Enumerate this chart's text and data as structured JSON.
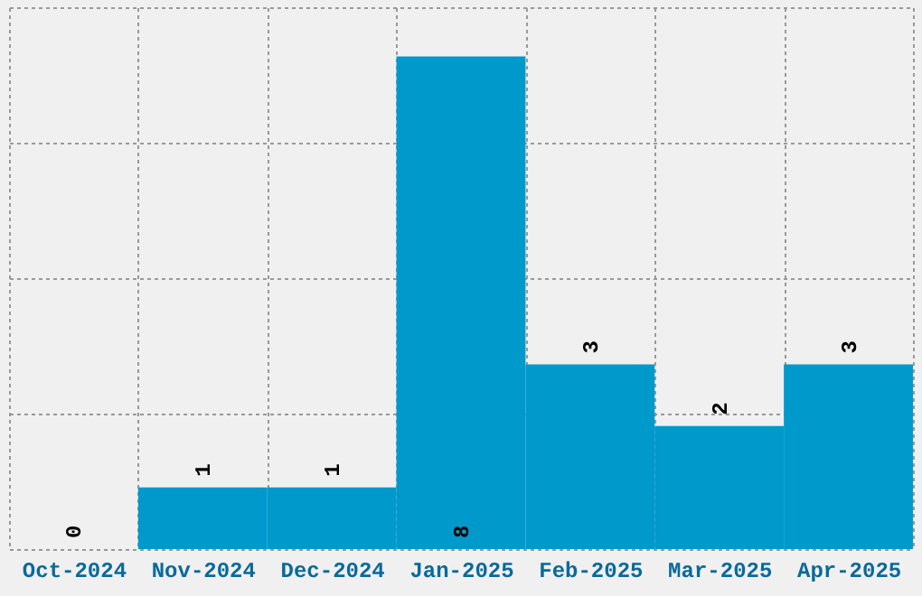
{
  "chart_data": {
    "type": "bar",
    "categories": [
      "Oct-2024",
      "Nov-2024",
      "Dec-2024",
      "Jan-2025",
      "Feb-2025",
      "Mar-2025",
      "Apr-2025"
    ],
    "values": [
      0,
      1,
      1,
      8,
      3,
      2,
      3
    ],
    "color": "#0099cc",
    "data_labels": true,
    "grid": true,
    "tick_labels": "x",
    "ylim": [
      0,
      8.8
    ],
    "yticks": [
      {
        "value": 0,
        "label": null
      },
      {
        "value": 2.2,
        "label": null
      },
      {
        "value": 4.4,
        "label": null
      },
      {
        "value": 6.6,
        "label": null
      },
      {
        "value": 8.8,
        "label": null
      }
    ]
  }
}
